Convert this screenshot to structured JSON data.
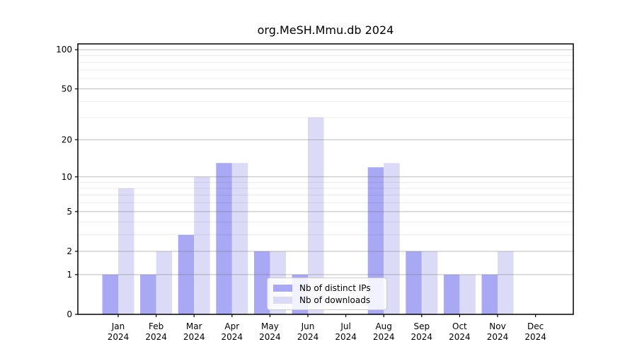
{
  "page": {
    "background": "#ffffff"
  },
  "chart_data": {
    "type": "bar",
    "title": "org.MeSH.Mmu.db 2024",
    "year_label": "2024",
    "categories": [
      "Jan",
      "Feb",
      "Mar",
      "Apr",
      "May",
      "Jun",
      "Jul",
      "Aug",
      "Sep",
      "Oct",
      "Nov",
      "Dec"
    ],
    "series": [
      {
        "name": "Nb of distinct IPs",
        "color": "#a8a8f5",
        "values": [
          1,
          1,
          3,
          13,
          2,
          1,
          0,
          12,
          2,
          1,
          1,
          0
        ]
      },
      {
        "name": "Nb of downloads",
        "color": "#dbdbf8",
        "values": [
          8,
          2,
          10,
          13,
          2,
          30,
          0,
          13,
          2,
          1,
          2,
          0
        ]
      }
    ],
    "y_axis": {
      "scale": "log10(1+x)",
      "ticks": [
        0,
        1,
        2,
        5,
        10,
        20,
        50,
        100
      ],
      "minor_gridlines": [
        3,
        4,
        6,
        7,
        8,
        9,
        30,
        40,
        60,
        70,
        80,
        90
      ],
      "ylim": [
        0,
        110
      ]
    },
    "x_axis": {
      "tick_label_line1": "month",
      "tick_label_line2": "2024"
    },
    "legend": {
      "position": "inside-bottom-center"
    },
    "grid": true,
    "colors": {
      "axis_border": "#000000",
      "major_gridline": "#c6c6c6",
      "minor_gridline": "#ededed",
      "text": "#000000",
      "legend_border": "#cccccc"
    }
  }
}
